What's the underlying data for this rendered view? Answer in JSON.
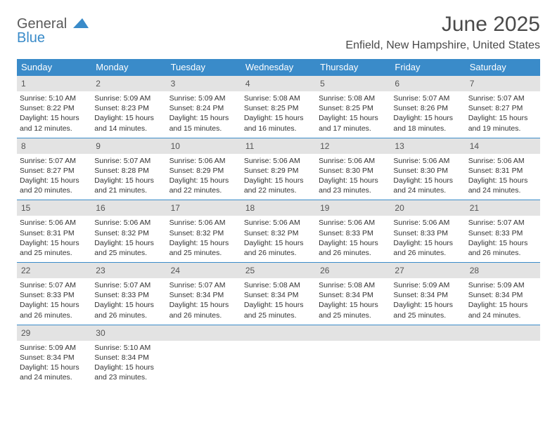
{
  "brand": {
    "part1": "General",
    "part2": "Blue"
  },
  "title": "June 2025",
  "location": "Enfield, New Hampshire, United States",
  "colors": {
    "header_bar": "#3a8bc9",
    "daynum_bg": "#e3e3e3",
    "row_border": "#3a8bc9",
    "text": "#333333",
    "title_text": "#4a4a4a"
  },
  "dow": [
    "Sunday",
    "Monday",
    "Tuesday",
    "Wednesday",
    "Thursday",
    "Friday",
    "Saturday"
  ],
  "weeks": [
    [
      {
        "n": "1",
        "sr": "5:10 AM",
        "ss": "8:22 PM",
        "dl": "15 hours and 12 minutes."
      },
      {
        "n": "2",
        "sr": "5:09 AM",
        "ss": "8:23 PM",
        "dl": "15 hours and 14 minutes."
      },
      {
        "n": "3",
        "sr": "5:09 AM",
        "ss": "8:24 PM",
        "dl": "15 hours and 15 minutes."
      },
      {
        "n": "4",
        "sr": "5:08 AM",
        "ss": "8:25 PM",
        "dl": "15 hours and 16 minutes."
      },
      {
        "n": "5",
        "sr": "5:08 AM",
        "ss": "8:25 PM",
        "dl": "15 hours and 17 minutes."
      },
      {
        "n": "6",
        "sr": "5:07 AM",
        "ss": "8:26 PM",
        "dl": "15 hours and 18 minutes."
      },
      {
        "n": "7",
        "sr": "5:07 AM",
        "ss": "8:27 PM",
        "dl": "15 hours and 19 minutes."
      }
    ],
    [
      {
        "n": "8",
        "sr": "5:07 AM",
        "ss": "8:27 PM",
        "dl": "15 hours and 20 minutes."
      },
      {
        "n": "9",
        "sr": "5:07 AM",
        "ss": "8:28 PM",
        "dl": "15 hours and 21 minutes."
      },
      {
        "n": "10",
        "sr": "5:06 AM",
        "ss": "8:29 PM",
        "dl": "15 hours and 22 minutes."
      },
      {
        "n": "11",
        "sr": "5:06 AM",
        "ss": "8:29 PM",
        "dl": "15 hours and 22 minutes."
      },
      {
        "n": "12",
        "sr": "5:06 AM",
        "ss": "8:30 PM",
        "dl": "15 hours and 23 minutes."
      },
      {
        "n": "13",
        "sr": "5:06 AM",
        "ss": "8:30 PM",
        "dl": "15 hours and 24 minutes."
      },
      {
        "n": "14",
        "sr": "5:06 AM",
        "ss": "8:31 PM",
        "dl": "15 hours and 24 minutes."
      }
    ],
    [
      {
        "n": "15",
        "sr": "5:06 AM",
        "ss": "8:31 PM",
        "dl": "15 hours and 25 minutes."
      },
      {
        "n": "16",
        "sr": "5:06 AM",
        "ss": "8:32 PM",
        "dl": "15 hours and 25 minutes."
      },
      {
        "n": "17",
        "sr": "5:06 AM",
        "ss": "8:32 PM",
        "dl": "15 hours and 25 minutes."
      },
      {
        "n": "18",
        "sr": "5:06 AM",
        "ss": "8:32 PM",
        "dl": "15 hours and 26 minutes."
      },
      {
        "n": "19",
        "sr": "5:06 AM",
        "ss": "8:33 PM",
        "dl": "15 hours and 26 minutes."
      },
      {
        "n": "20",
        "sr": "5:06 AM",
        "ss": "8:33 PM",
        "dl": "15 hours and 26 minutes."
      },
      {
        "n": "21",
        "sr": "5:07 AM",
        "ss": "8:33 PM",
        "dl": "15 hours and 26 minutes."
      }
    ],
    [
      {
        "n": "22",
        "sr": "5:07 AM",
        "ss": "8:33 PM",
        "dl": "15 hours and 26 minutes."
      },
      {
        "n": "23",
        "sr": "5:07 AM",
        "ss": "8:33 PM",
        "dl": "15 hours and 26 minutes."
      },
      {
        "n": "24",
        "sr": "5:07 AM",
        "ss": "8:34 PM",
        "dl": "15 hours and 26 minutes."
      },
      {
        "n": "25",
        "sr": "5:08 AM",
        "ss": "8:34 PM",
        "dl": "15 hours and 25 minutes."
      },
      {
        "n": "26",
        "sr": "5:08 AM",
        "ss": "8:34 PM",
        "dl": "15 hours and 25 minutes."
      },
      {
        "n": "27",
        "sr": "5:09 AM",
        "ss": "8:34 PM",
        "dl": "15 hours and 25 minutes."
      },
      {
        "n": "28",
        "sr": "5:09 AM",
        "ss": "8:34 PM",
        "dl": "15 hours and 24 minutes."
      }
    ],
    [
      {
        "n": "29",
        "sr": "5:09 AM",
        "ss": "8:34 PM",
        "dl": "15 hours and 24 minutes."
      },
      {
        "n": "30",
        "sr": "5:10 AM",
        "ss": "8:34 PM",
        "dl": "15 hours and 23 minutes."
      },
      null,
      null,
      null,
      null,
      null
    ]
  ],
  "labels": {
    "sunrise": "Sunrise: ",
    "sunset": "Sunset: ",
    "daylight": "Daylight: "
  }
}
